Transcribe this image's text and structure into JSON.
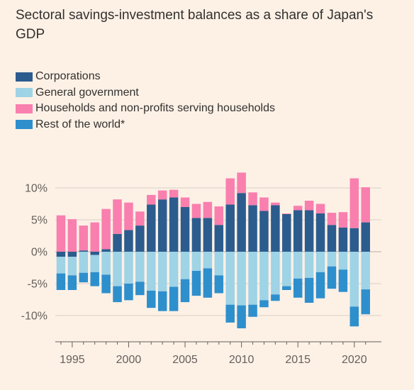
{
  "title": "Sectoral savings-investment balances as a share of Japan's GDP",
  "colors": {
    "corporations": "#2c5c8e",
    "government": "#9fd3e6",
    "households": "#f97fae",
    "rest_of_world": "#2e8fcd",
    "background": "#fdf1e6",
    "grid": "#d9cfc6",
    "axis": "#66605c"
  },
  "legend": [
    {
      "label": "Corporations",
      "color": "#2c5c8e"
    },
    {
      "label": "General government",
      "color": "#9fd3e6"
    },
    {
      "label": "Households and non-profits serving households",
      "color": "#f97fae"
    },
    {
      "label": "Rest of the world*",
      "color": "#2e8fcd"
    }
  ],
  "chart_data": {
    "type": "bar",
    "stacked": true,
    "x": [
      1994,
      1995,
      1996,
      1997,
      1998,
      1999,
      2000,
      2001,
      2002,
      2003,
      2004,
      2005,
      2006,
      2007,
      2008,
      2009,
      2010,
      2011,
      2012,
      2013,
      2014,
      2015,
      2016,
      2017,
      2018,
      2019,
      2020,
      2021
    ],
    "series": [
      {
        "name": "Corporations",
        "values": [
          -0.8,
          -0.8,
          0.2,
          -0.5,
          0.4,
          2.8,
          3.4,
          4.1,
          7.4,
          8.2,
          8.5,
          7.0,
          5.3,
          5.3,
          4.2,
          7.4,
          9.2,
          7.3,
          6.4,
          7.3,
          5.9,
          6.5,
          6.5,
          6.0,
          4.2,
          3.8,
          3.7,
          4.6
        ]
      },
      {
        "name": "General government",
        "values": [
          -2.6,
          -2.9,
          -3.3,
          -2.7,
          -3.6,
          -5.4,
          -5.0,
          -4.7,
          -6.1,
          -6.2,
          -5.5,
          -4.3,
          -3.0,
          -2.6,
          -3.7,
          -8.3,
          -8.4,
          -8.3,
          -7.6,
          -6.7,
          -5.4,
          -4.2,
          -4.1,
          -3.2,
          -2.3,
          -2.8,
          -8.6,
          -5.9
        ]
      },
      {
        "name": "Households and non-profits serving households",
        "values": [
          5.7,
          5.1,
          3.9,
          4.6,
          6.3,
          5.4,
          4.3,
          2.2,
          1.5,
          1.4,
          1.2,
          1.5,
          2.2,
          2.5,
          2.9,
          4.1,
          3.2,
          2.0,
          2.1,
          0.4,
          0.1,
          0.7,
          1.5,
          1.5,
          1.9,
          2.4,
          7.8,
          5.5
        ]
      },
      {
        "name": "Rest of the world*",
        "values": [
          -2.6,
          -2.3,
          -1.5,
          -2.2,
          -2.9,
          -2.5,
          -2.6,
          -2.1,
          -2.7,
          -3.1,
          -3.8,
          -3.6,
          -3.9,
          -4.6,
          -2.8,
          -2.8,
          -3.6,
          -1.9,
          -1.1,
          -1.0,
          -0.6,
          -3.0,
          -3.9,
          -4.1,
          -3.5,
          -3.5,
          -3.1,
          -3.9
        ]
      }
    ],
    "ylim": [
      -12.3,
      12.5
    ],
    "yticks": [
      10,
      5,
      0,
      -5,
      -10
    ],
    "ytick_labels": [
      "10%",
      "5%",
      "0%",
      "-5%",
      "-10%"
    ],
    "xticks": [
      1995,
      2000,
      2005,
      2010,
      2015,
      2020
    ],
    "xtick_labels": [
      "1995",
      "2000",
      "2005",
      "2010",
      "2015",
      "2020"
    ],
    "grid": true,
    "legend_position": "top-left"
  }
}
